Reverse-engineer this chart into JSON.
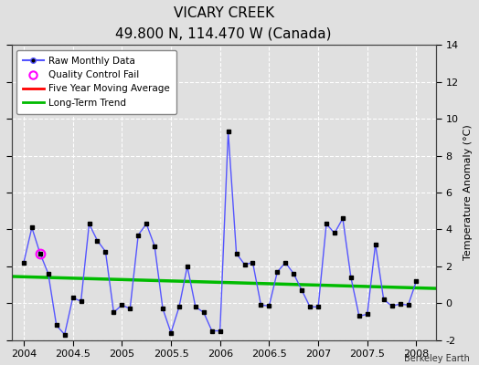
{
  "title": "VICARY CREEK",
  "subtitle": "49.800 N, 114.470 W (Canada)",
  "credit": "Berkeley Earth",
  "ylabel": "Temperature Anomaly (°C)",
  "ylim": [
    -2,
    14
  ],
  "yticks": [
    -2,
    0,
    2,
    4,
    6,
    8,
    10,
    12,
    14
  ],
  "xlim": [
    2003.875,
    2008.2
  ],
  "xticks": [
    2004,
    2004.5,
    2005,
    2005.5,
    2006,
    2006.5,
    2007,
    2007.5,
    2008
  ],
  "xticklabels": [
    "2004",
    "2004.5",
    "2005",
    "2005.5",
    "2006",
    "2006.5",
    "2007",
    "2007.5",
    "2008"
  ],
  "background_color": "#e0e0e0",
  "plot_bg_color": "#e0e0e0",
  "grid_color": "#ffffff",
  "raw_color": "#5555ff",
  "raw_marker_color": "#000000",
  "ma_color": "#ff0000",
  "trend_color": "#00bb00",
  "qc_fail_color": "#ff00ff",
  "raw_x": [
    2004.0,
    2004.0833,
    2004.1667,
    2004.25,
    2004.3333,
    2004.4167,
    2004.5,
    2004.5833,
    2004.6667,
    2004.75,
    2004.8333,
    2004.9167,
    2005.0,
    2005.0833,
    2005.1667,
    2005.25,
    2005.3333,
    2005.4167,
    2005.5,
    2005.5833,
    2005.6667,
    2005.75,
    2005.8333,
    2005.9167,
    2006.0,
    2006.0833,
    2006.1667,
    2006.25,
    2006.3333,
    2006.4167,
    2006.5,
    2006.5833,
    2006.6667,
    2006.75,
    2006.8333,
    2006.9167,
    2007.0,
    2007.0833,
    2007.1667,
    2007.25,
    2007.3333,
    2007.4167,
    2007.5,
    2007.5833,
    2007.6667,
    2007.75,
    2007.8333,
    2007.9167,
    2008.0
  ],
  "raw_y": [
    2.2,
    4.1,
    2.7,
    1.6,
    -1.2,
    -1.7,
    0.3,
    0.1,
    4.3,
    3.4,
    2.8,
    -0.5,
    -0.1,
    -0.3,
    3.7,
    4.3,
    3.1,
    -0.3,
    -1.6,
    -0.2,
    2.0,
    -0.2,
    -0.5,
    -1.5,
    -1.5,
    9.3,
    2.7,
    2.1,
    2.2,
    -0.1,
    -0.15,
    1.7,
    2.2,
    1.6,
    0.7,
    -0.2,
    -0.2,
    4.3,
    3.8,
    4.6,
    1.4,
    -0.7,
    -0.6,
    3.2,
    0.2,
    -0.15,
    -0.05,
    -0.1,
    1.2
  ],
  "qc_fail_x": [
    2004.1667
  ],
  "qc_fail_y": [
    2.7
  ],
  "trend_x": [
    2003.875,
    2008.2
  ],
  "trend_y": [
    1.45,
    0.8
  ],
  "ma_x": [],
  "ma_y": []
}
